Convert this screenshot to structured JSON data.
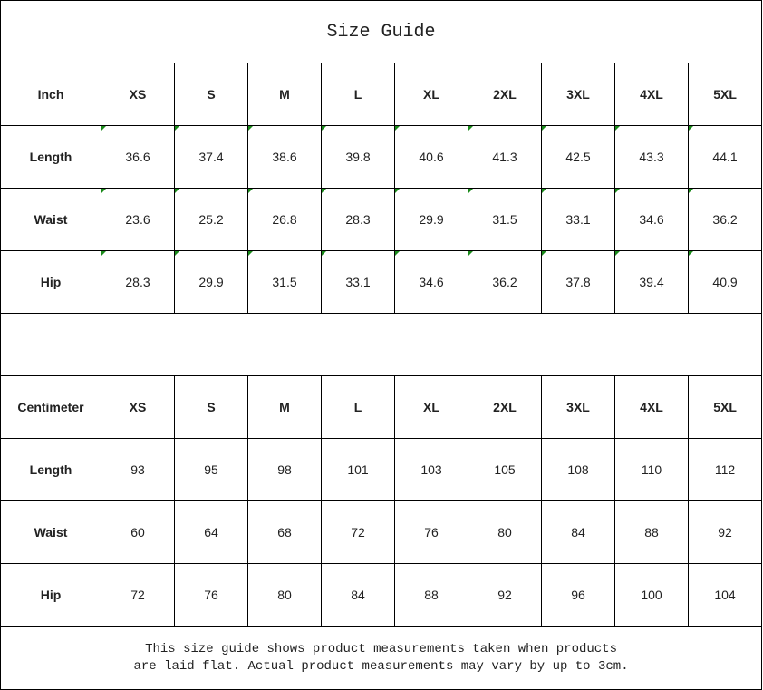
{
  "title": "Size Guide",
  "inch_table": {
    "header": [
      "Inch",
      "XS",
      "S",
      "M",
      "L",
      "XL",
      "2XL",
      "3XL",
      "4XL",
      "5XL"
    ],
    "rows": [
      {
        "label": "Length",
        "values": [
          "36.6",
          "37.4",
          "38.6",
          "39.8",
          "40.6",
          "41.3",
          "42.5",
          "43.3",
          "44.1"
        ]
      },
      {
        "label": "Waist",
        "values": [
          "23.6",
          "25.2",
          "26.8",
          "28.3",
          "29.9",
          "31.5",
          "33.1",
          "34.6",
          "36.2"
        ]
      },
      {
        "label": "Hip",
        "values": [
          "28.3",
          "29.9",
          "31.5",
          "33.1",
          "34.6",
          "36.2",
          "37.8",
          "39.4",
          "40.9"
        ]
      }
    ]
  },
  "cm_table": {
    "header": [
      "Centimeter",
      "XS",
      "S",
      "M",
      "L",
      "XL",
      "2XL",
      "3XL",
      "4XL",
      "5XL"
    ],
    "rows": [
      {
        "label": "Length",
        "values": [
          "93",
          "95",
          "98",
          "101",
          "103",
          "105",
          "108",
          "110",
          "112"
        ]
      },
      {
        "label": "Waist",
        "values": [
          "60",
          "64",
          "68",
          "72",
          "76",
          "80",
          "84",
          "88",
          "92"
        ]
      },
      {
        "label": "Hip",
        "values": [
          "72",
          "76",
          "80",
          "84",
          "88",
          "92",
          "96",
          "100",
          "104"
        ]
      }
    ]
  },
  "footer": {
    "line1": "This size guide shows product measurements taken when products",
    "line2": "are laid flat. Actual product measurements may vary by up to 3cm."
  },
  "colors": {
    "text_flag_marker": "#1a8a1a"
  }
}
